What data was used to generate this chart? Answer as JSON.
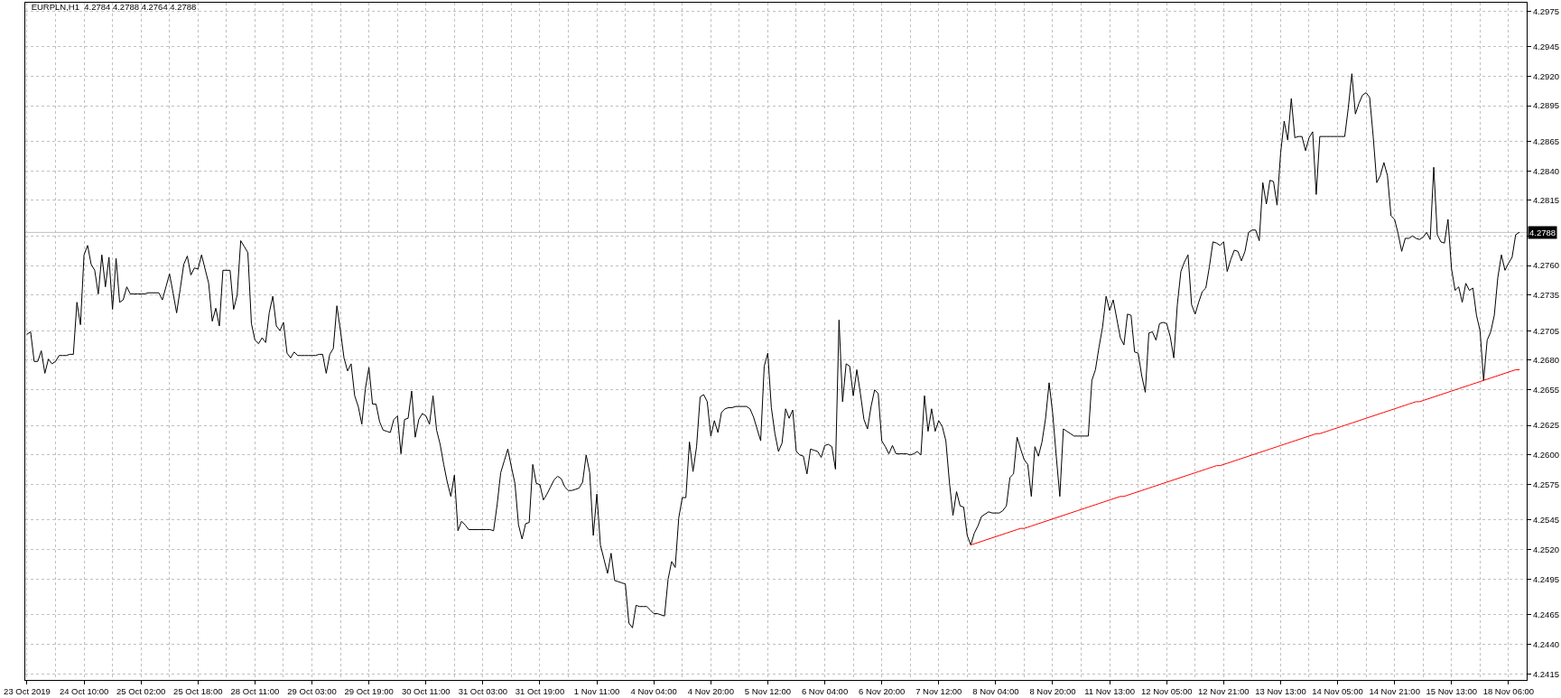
{
  "chart_data": {
    "type": "line",
    "title": "EURPLN,H1  4.2784 4.2788 4.2764 4.2788",
    "categories": [
      "23 Oct 2019",
      null,
      null,
      null,
      null,
      null,
      null,
      null,
      null,
      null,
      null,
      null,
      null,
      null,
      null,
      null,
      "24 Oct 10:00",
      null,
      null,
      null,
      null,
      null,
      null,
      null,
      null,
      null,
      null,
      null,
      null,
      null,
      null,
      null,
      "25 Oct 02:00",
      null,
      null,
      null,
      null,
      null,
      null,
      null,
      null,
      null,
      null,
      null,
      null,
      null,
      null,
      null,
      "25 Oct 18:00",
      null,
      null,
      null,
      null,
      null,
      null,
      null,
      null,
      null,
      null,
      null,
      null,
      null,
      null,
      null,
      "28 Oct 11:00",
      null,
      null,
      null,
      null,
      null,
      null,
      null,
      null,
      null,
      null,
      null,
      null,
      null,
      null,
      null,
      "29 Oct 03:00",
      null,
      null,
      null,
      null,
      null,
      null,
      null,
      null,
      null,
      null,
      null,
      null,
      null,
      null,
      null,
      "29 Oct 19:00",
      null,
      null,
      null,
      null,
      null,
      null,
      null,
      null,
      null,
      null,
      null,
      null,
      null,
      null,
      null,
      "30 Oct 11:00",
      null,
      null,
      null,
      null,
      null,
      null,
      null,
      null,
      null,
      null,
      null,
      null,
      null,
      null,
      null,
      "31 Oct 03:00",
      null,
      null,
      null,
      null,
      null,
      null,
      null,
      null,
      null,
      null,
      null,
      null,
      null,
      null,
      null,
      "31 Oct 19:00",
      null,
      null,
      null,
      null,
      null,
      null,
      null,
      null,
      null,
      null,
      null,
      null,
      null,
      null,
      null,
      "1 Nov 11:00",
      null,
      null,
      null,
      null,
      null,
      null,
      null,
      null,
      null,
      null,
      null,
      null,
      null,
      null,
      null,
      "4 Nov 04:00",
      null,
      null,
      null,
      null,
      null,
      null,
      null,
      null,
      null,
      null,
      null,
      null,
      null,
      null,
      null,
      "4 Nov 20:00",
      null,
      null,
      null,
      null,
      null,
      null,
      null,
      null,
      null,
      null,
      null,
      null,
      null,
      null,
      null,
      "5 Nov 12:00",
      null,
      null,
      null,
      null,
      null,
      null,
      null,
      null,
      null,
      null,
      null,
      null,
      null,
      null,
      null,
      "6 Nov 04:00",
      null,
      null,
      null,
      null,
      null,
      null,
      null,
      null,
      null,
      null,
      null,
      null,
      null,
      null,
      null,
      "6 Nov 20:00",
      null,
      null,
      null,
      null,
      null,
      null,
      null,
      null,
      null,
      null,
      null,
      null,
      null,
      null,
      null,
      "7 Nov 12:00",
      null,
      null,
      null,
      null,
      null,
      null,
      null,
      null,
      null,
      null,
      null,
      null,
      null,
      null,
      null,
      "8 Nov 04:00",
      null,
      null,
      null,
      null,
      null,
      null,
      null,
      null,
      null,
      null,
      null,
      null,
      null,
      null,
      null,
      "8 Nov 20:00",
      null,
      null,
      null,
      null,
      null,
      null,
      null,
      null,
      null,
      null,
      null,
      null,
      null,
      null,
      null,
      "11 Nov 13:00",
      null,
      null,
      null,
      null,
      null,
      null,
      null,
      null,
      null,
      null,
      null,
      null,
      null,
      null,
      null,
      "12 Nov 05:00",
      null,
      null,
      null,
      null,
      null,
      null,
      null,
      null,
      null,
      null,
      null,
      null,
      null,
      null,
      null,
      "12 Nov 21:00",
      null,
      null,
      null,
      null,
      null,
      null,
      null,
      null,
      null,
      null,
      null,
      null,
      null,
      null,
      null,
      "13 Nov 13:00",
      null,
      null,
      null,
      null,
      null,
      null,
      null,
      null,
      null,
      null,
      null,
      null,
      null,
      null,
      null,
      "14 Nov 05:00",
      null,
      null,
      null,
      null,
      null,
      null,
      null,
      null,
      null,
      null,
      null,
      null,
      null,
      null,
      null,
      "14 Nov 21:00",
      null,
      null,
      null,
      null,
      null,
      null,
      null,
      null,
      null,
      null,
      null,
      null,
      null,
      null,
      null,
      "15 Nov 13:00",
      null,
      null,
      null,
      null,
      null,
      null,
      null,
      null,
      null,
      null,
      null,
      null,
      null,
      null,
      null,
      "18 Nov 06:00",
      null,
      null,
      null
    ],
    "series": [
      {
        "color": "#000000",
        "values": [
          4.2702,
          4.2704,
          4.2679,
          4.2679,
          4.2688,
          4.2669,
          4.2681,
          4.2677,
          4.2679,
          4.2684,
          4.2684,
          4.2684,
          4.2685,
          4.2685,
          4.2729,
          4.271,
          4.2769,
          4.2777,
          4.2761,
          4.2756,
          4.2736,
          4.2769,
          4.2742,
          4.2767,
          4.2723,
          4.2766,
          4.2729,
          4.2731,
          4.2742,
          4.2736,
          4.2736,
          4.2736,
          4.2736,
          4.2736,
          4.2737,
          4.2737,
          4.2737,
          4.2737,
          4.2731,
          4.2742,
          4.2753,
          4.2737,
          4.272,
          4.274,
          4.2761,
          4.2768,
          4.2752,
          4.2758,
          4.2757,
          4.2769,
          4.2757,
          4.2745,
          4.2713,
          4.2724,
          4.2709,
          4.2756,
          4.2756,
          4.2756,
          4.2723,
          4.2735,
          4.2781,
          4.2776,
          4.2771,
          4.2711,
          4.2697,
          4.2694,
          4.2699,
          4.2695,
          4.272,
          4.2734,
          4.2709,
          4.2705,
          4.2712,
          4.2686,
          4.2682,
          4.2687,
          4.2684,
          4.2684,
          4.2684,
          4.2684,
          4.2684,
          4.2684,
          4.2685,
          4.2685,
          4.2669,
          4.2685,
          4.269,
          4.2726,
          4.2705,
          4.2682,
          4.2671,
          4.2677,
          4.265,
          4.2641,
          4.2626,
          4.2656,
          4.2674,
          4.2643,
          4.2643,
          4.2628,
          4.2621,
          4.262,
          4.2619,
          4.263,
          4.2633,
          4.2601,
          4.263,
          4.2631,
          4.2654,
          4.2615,
          4.263,
          4.2635,
          4.2633,
          4.2626,
          4.265,
          4.2621,
          4.2609,
          4.2592,
          4.2577,
          4.2565,
          4.2583,
          4.2536,
          4.2544,
          4.2541,
          4.2537,
          4.2537,
          4.2537,
          4.2537,
          4.2537,
          4.2537,
          4.2537,
          4.2536,
          4.2558,
          4.2585,
          4.2595,
          4.2605,
          4.259,
          4.2576,
          4.2541,
          4.2529,
          4.2542,
          4.2543,
          4.2592,
          4.2576,
          4.2575,
          4.2562,
          4.2567,
          4.2573,
          4.2579,
          4.2582,
          4.258,
          4.2573,
          4.257,
          4.257,
          4.2571,
          4.2572,
          4.2577,
          4.26,
          4.2585,
          4.2532,
          4.2567,
          4.2524,
          4.2512,
          4.25,
          4.2517,
          4.2494,
          4.2493,
          4.2492,
          4.2491,
          4.2458,
          4.2454,
          4.2473,
          4.2472,
          4.2472,
          4.2472,
          4.2469,
          4.2466,
          4.2466,
          4.2465,
          4.2464,
          4.2495,
          4.251,
          4.2505,
          4.2547,
          4.2564,
          4.2564,
          4.2611,
          4.2586,
          4.2607,
          4.2649,
          4.2651,
          4.2645,
          4.2616,
          4.2629,
          4.2619,
          4.2636,
          4.2639,
          4.264,
          4.264,
          4.2641,
          4.2641,
          4.2641,
          4.2641,
          4.2639,
          4.2632,
          4.2622,
          4.2612,
          4.2675,
          4.2686,
          4.264,
          4.2618,
          4.2603,
          4.261,
          4.2639,
          4.2631,
          4.2638,
          4.2603,
          4.26,
          4.2599,
          4.2584,
          4.2605,
          4.2604,
          4.2603,
          4.2598,
          4.2608,
          4.2609,
          4.2607,
          4.2588,
          4.2714,
          4.2645,
          4.2677,
          4.2675,
          4.265,
          4.2672,
          4.2652,
          4.263,
          4.2622,
          4.2641,
          4.2655,
          4.2652,
          4.2612,
          4.2607,
          4.2601,
          4.2608,
          4.2601,
          4.2601,
          4.2601,
          4.2601,
          4.26,
          4.2601,
          4.2603,
          4.26,
          4.265,
          4.262,
          4.2639,
          4.262,
          4.2629,
          4.2624,
          4.2612,
          4.2577,
          4.2549,
          4.2569,
          4.2557,
          4.2556,
          4.2532,
          4.2524,
          4.2534,
          4.254,
          4.2548,
          4.255,
          4.2552,
          4.2551,
          4.2551,
          4.2551,
          4.2553,
          4.2557,
          4.2581,
          4.2584,
          4.2615,
          4.2605,
          4.2596,
          4.2592,
          4.2565,
          4.2607,
          4.2599,
          4.2611,
          4.2631,
          4.2661,
          4.2635,
          4.2599,
          4.2565,
          4.2622,
          4.262,
          4.2618,
          4.2616,
          4.2616,
          4.2616,
          4.2616,
          4.2616,
          4.2663,
          4.2672,
          4.2691,
          4.2708,
          4.2734,
          4.2722,
          4.2731,
          4.2715,
          4.2699,
          4.2693,
          4.2719,
          4.2718,
          4.2687,
          4.2686,
          4.2667,
          4.2653,
          4.2703,
          4.2704,
          4.2697,
          4.2711,
          4.2712,
          4.2711,
          4.27,
          4.2682,
          4.2727,
          4.2755,
          4.2763,
          4.2769,
          4.2727,
          4.2719,
          4.2729,
          4.2738,
          4.2741,
          4.2759,
          4.278,
          4.2779,
          4.2777,
          4.278,
          4.2755,
          4.2765,
          4.2773,
          4.2772,
          4.2764,
          4.2772,
          4.2788,
          4.279,
          4.279,
          4.2781,
          4.283,
          4.2812,
          4.2832,
          4.2831,
          4.2811,
          4.2855,
          4.2882,
          4.2866,
          4.2901,
          4.2868,
          4.2869,
          4.2869,
          4.2857,
          4.2868,
          4.2873,
          4.282,
          4.2869,
          4.2869,
          4.2869,
          4.2869,
          4.2869,
          4.2869,
          4.2869,
          4.2869,
          4.2893,
          4.2922,
          4.2888,
          4.2897,
          4.2904,
          4.2906,
          4.2902,
          4.2869,
          4.283,
          4.2836,
          4.2847,
          4.2836,
          4.2802,
          4.2799,
          4.2787,
          4.2772,
          4.2783,
          4.2783,
          4.2785,
          4.2783,
          4.2782,
          4.2784,
          4.2788,
          4.2782,
          4.2843,
          4.2786,
          4.278,
          4.2779,
          4.2799,
          4.2757,
          4.2739,
          4.2742,
          4.2729,
          4.2745,
          4.2739,
          4.2741,
          4.2718,
          4.2705,
          4.2663,
          4.2697,
          4.2704,
          4.2718,
          4.275,
          4.2769,
          4.2756,
          4.2762,
          4.2767,
          4.2786,
          4.2788
        ]
      },
      {
        "color": "#ff0000",
        "values": [
          null,
          null,
          null,
          null,
          null,
          null,
          null,
          null,
          null,
          null,
          null,
          null,
          null,
          null,
          null,
          null,
          null,
          null,
          null,
          null,
          null,
          null,
          null,
          null,
          null,
          null,
          null,
          null,
          null,
          null,
          null,
          null,
          null,
          null,
          null,
          null,
          null,
          null,
          null,
          null,
          null,
          null,
          null,
          null,
          null,
          null,
          null,
          null,
          null,
          null,
          null,
          null,
          null,
          null,
          null,
          null,
          null,
          null,
          null,
          null,
          null,
          null,
          null,
          null,
          null,
          null,
          null,
          null,
          null,
          null,
          null,
          null,
          null,
          null,
          null,
          null,
          null,
          null,
          null,
          null,
          null,
          null,
          null,
          null,
          null,
          null,
          null,
          null,
          null,
          null,
          null,
          null,
          null,
          null,
          null,
          null,
          null,
          null,
          null,
          null,
          null,
          null,
          null,
          null,
          null,
          null,
          null,
          null,
          null,
          null,
          null,
          null,
          null,
          null,
          null,
          null,
          null,
          null,
          null,
          null,
          null,
          null,
          null,
          null,
          null,
          null,
          null,
          null,
          null,
          null,
          null,
          null,
          null,
          null,
          null,
          null,
          null,
          null,
          null,
          null,
          null,
          null,
          null,
          null,
          null,
          null,
          null,
          null,
          null,
          null,
          null,
          null,
          null,
          null,
          null,
          null,
          null,
          null,
          null,
          null,
          null,
          null,
          null,
          null,
          null,
          null,
          null,
          null,
          null,
          null,
          null,
          null,
          null,
          null,
          null,
          null,
          null,
          null,
          null,
          null,
          null,
          null,
          null,
          null,
          null,
          null,
          null,
          null,
          null,
          null,
          null,
          null,
          null,
          null,
          null,
          null,
          null,
          null,
          null,
          null,
          null,
          null,
          null,
          null,
          null,
          null,
          null,
          null,
          null,
          null,
          null,
          null,
          null,
          null,
          null,
          null,
          null,
          null,
          null,
          null,
          null,
          null,
          null,
          null,
          null,
          null,
          null,
          null,
          null,
          null,
          null,
          null,
          null,
          null,
          null,
          null,
          null,
          null,
          null,
          null,
          null,
          null,
          null,
          null,
          null,
          null,
          null,
          null,
          null,
          null,
          null,
          null,
          null,
          null,
          null,
          null,
          null,
          null,
          null,
          null,
          null,
          null,
          null,
          null,
          null,
          4.2524,
          4.2525,
          4.2526,
          4.2527,
          4.2528,
          4.2529,
          4.253,
          4.2531,
          4.2532,
          4.2533,
          4.2534,
          4.2535,
          4.2536,
          4.2537,
          4.2538,
          4.2538,
          4.2539,
          4.254,
          4.2541,
          4.2542,
          4.2543,
          4.2544,
          4.2545,
          4.2546,
          4.2547,
          4.2548,
          4.2549,
          4.255,
          4.2551,
          4.2552,
          4.2553,
          4.2554,
          4.2555,
          4.2556,
          4.2557,
          4.2558,
          4.2559,
          4.256,
          4.2561,
          4.2562,
          4.2563,
          4.2564,
          4.2565,
          4.2565,
          4.2566,
          4.2567,
          4.2568,
          4.2569,
          4.257,
          4.2571,
          4.2572,
          4.2573,
          4.2574,
          4.2575,
          4.2576,
          4.2577,
          4.2578,
          4.2579,
          4.258,
          4.2581,
          4.2582,
          4.2583,
          4.2584,
          4.2585,
          4.2586,
          4.2587,
          4.2588,
          4.2589,
          4.259,
          4.2591,
          4.2591,
          4.2592,
          4.2593,
          4.2594,
          4.2595,
          4.2596,
          4.2597,
          4.2598,
          4.2599,
          4.26,
          4.2601,
          4.2602,
          4.2603,
          4.2604,
          4.2605,
          4.2606,
          4.2607,
          4.2608,
          4.2609,
          4.261,
          4.2611,
          4.2612,
          4.2613,
          4.2614,
          4.2615,
          4.2616,
          4.2617,
          4.2618,
          4.2618,
          4.2619,
          4.262,
          4.2621,
          4.2622,
          4.2623,
          4.2624,
          4.2625,
          4.2626,
          4.2627,
          4.2628,
          4.2629,
          4.263,
          4.2631,
          4.2632,
          4.2633,
          4.2634,
          4.2635,
          4.2636,
          4.2637,
          4.2638,
          4.2639,
          4.264,
          4.2641,
          4.2642,
          4.2643,
          4.2644,
          4.2645,
          4.2645,
          4.2646,
          4.2647,
          4.2648,
          4.2649,
          4.265,
          4.2651,
          4.2652,
          4.2653,
          4.2654,
          4.2655,
          4.2656,
          4.2657,
          4.2658,
          4.2659,
          4.266,
          4.2661,
          4.2662,
          4.2663,
          4.2664,
          4.2665,
          4.2666,
          4.2667,
          4.2668,
          4.2669,
          4.267,
          4.2671,
          4.2672,
          4.2672
        ]
      }
    ],
    "ylim": [
      4.241,
      4.2982
    ],
    "yticks": [
      4.2415,
      {
        "value": 4.244,
        "label": "4.2440"
      },
      4.2465,
      4.2495,
      {
        "value": 4.252,
        "label": "4.2520"
      },
      4.2545,
      4.2575,
      {
        "value": 4.26,
        "label": "4.2600"
      },
      4.2625,
      4.2655,
      {
        "value": 4.268,
        "label": "4.2680"
      },
      4.2705,
      4.2735,
      {
        "value": 4.276,
        "label": "4.2760"
      },
      {
        "value": 4.2785,
        "label": null
      },
      4.2815,
      {
        "value": 4.284,
        "label": "4.2840"
      },
      4.2865,
      4.2895,
      {
        "value": 4.292,
        "label": "4.2920"
      },
      4.2945,
      4.2975
    ],
    "ref_lines": [
      {
        "axis": "y",
        "value": 4.2788,
        "label": "4.2788",
        "color": "#c0c0c0"
      }
    ],
    "grid": true
  }
}
